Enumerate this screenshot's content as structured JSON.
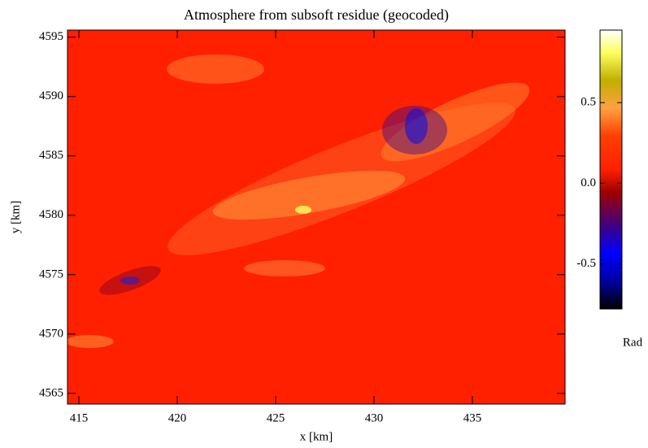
{
  "chart_data": {
    "type": "heatmap",
    "title": "Atmosphere from subsoft residue (geocoded)",
    "x_label": "x [km]",
    "y_label": "y [km]",
    "xlim": [
      414.42,
      439.71
    ],
    "ylim": [
      4564.1,
      4595.6
    ],
    "xticks": [
      415,
      420,
      425,
      430,
      435
    ],
    "yticks": [
      4565,
      4570,
      4575,
      4580,
      4585,
      4590,
      4595
    ],
    "colorbar": {
      "label": "Rad",
      "lim": [
        -0.78,
        0.95
      ],
      "ticks": [
        -0.5,
        {
          "value": 0,
          "label": "0.0"
        },
        0.5
      ]
    }
  }
}
